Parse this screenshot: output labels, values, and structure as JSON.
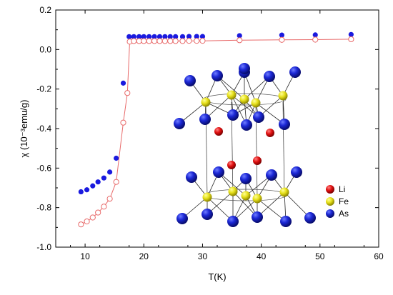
{
  "chart_data": {
    "type": "scatter",
    "xlabel": "T(K)",
    "ylabel": "χ (10⁻³emu/g)",
    "xlim": [
      5,
      60
    ],
    "ylim": [
      -1.0,
      0.2
    ],
    "xticks": [
      10,
      20,
      30,
      40,
      50,
      60
    ],
    "yticks": [
      0.2,
      0.0,
      -0.2,
      -0.4,
      -0.6,
      -0.8,
      -1.0
    ],
    "ytick_labels": [
      "0.2",
      "0.0",
      "-0.2",
      "-0.4",
      "-0.6",
      "-0.8",
      "-1.0"
    ],
    "grid": false,
    "series": [
      {
        "marker": "filled-circle",
        "color": "#1a1adf",
        "line": false,
        "points": [
          [
            9.3,
            -0.72
          ],
          [
            10.3,
            -0.71
          ],
          [
            11.3,
            -0.69
          ],
          [
            12.2,
            -0.67
          ],
          [
            13.2,
            -0.65
          ],
          [
            14.2,
            -0.62
          ],
          [
            15.3,
            -0.55
          ],
          [
            16.5,
            -0.17
          ],
          [
            17.5,
            0.065
          ],
          [
            18.3,
            0.065
          ],
          [
            19.2,
            0.065
          ],
          [
            20.0,
            0.065
          ],
          [
            20.9,
            0.065
          ],
          [
            21.8,
            0.065
          ],
          [
            22.7,
            0.065
          ],
          [
            23.6,
            0.065
          ],
          [
            24.5,
            0.065
          ],
          [
            25.4,
            0.065
          ],
          [
            26.6,
            0.065
          ],
          [
            27.7,
            0.066
          ],
          [
            29.0,
            0.066
          ],
          [
            30.0,
            0.066
          ],
          [
            36.3,
            0.07
          ],
          [
            43.5,
            0.073
          ],
          [
            49.2,
            0.074
          ],
          [
            55.3,
            0.076
          ]
        ]
      },
      {
        "marker": "open-circle",
        "color": "#e86a6a",
        "line": true,
        "points": [
          [
            9.3,
            -0.885
          ],
          [
            10.3,
            -0.87
          ],
          [
            11.3,
            -0.85
          ],
          [
            12.2,
            -0.825
          ],
          [
            13.2,
            -0.795
          ],
          [
            14.2,
            -0.755
          ],
          [
            15.3,
            -0.67
          ],
          [
            16.5,
            -0.37
          ],
          [
            17.2,
            -0.22
          ],
          [
            17.6,
            0.04
          ],
          [
            18.3,
            0.043
          ],
          [
            19.2,
            0.043
          ],
          [
            20.0,
            0.043
          ],
          [
            20.9,
            0.043
          ],
          [
            21.8,
            0.043
          ],
          [
            22.7,
            0.043
          ],
          [
            23.6,
            0.043
          ],
          [
            24.5,
            0.043
          ],
          [
            25.4,
            0.043
          ],
          [
            26.6,
            0.043
          ],
          [
            27.7,
            0.044
          ],
          [
            29.0,
            0.044
          ],
          [
            30.0,
            0.044
          ],
          [
            36.3,
            0.047
          ],
          [
            43.5,
            0.049
          ],
          [
            49.2,
            0.05
          ],
          [
            55.3,
            0.052
          ]
        ]
      }
    ],
    "inset": {
      "description": "crystal structure",
      "legend": [
        {
          "label": "Li",
          "color": "#dd1111"
        },
        {
          "label": "Fe",
          "color": "#e8e020"
        },
        {
          "label": "As",
          "color": "#1a22cc"
        }
      ]
    }
  }
}
